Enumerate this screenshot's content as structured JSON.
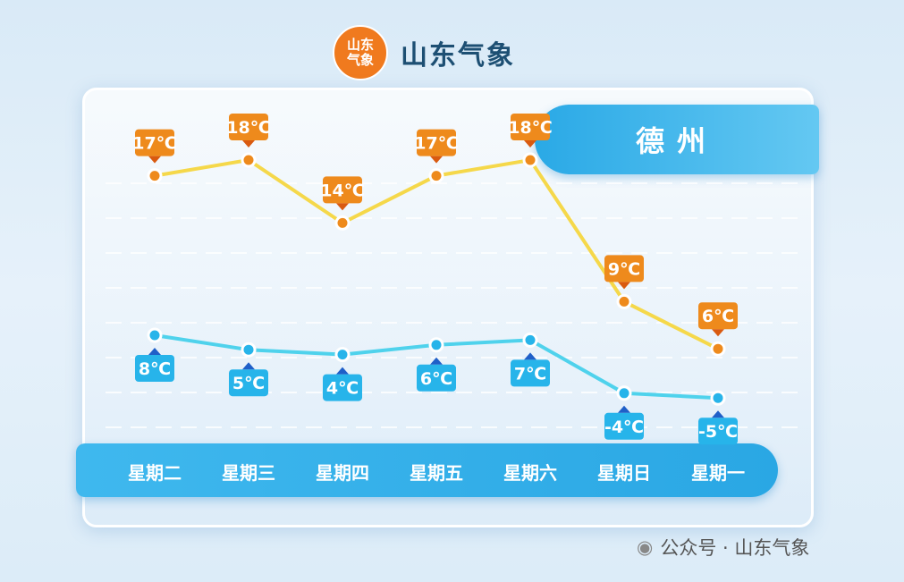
{
  "header": {
    "logo_text": "山东气象",
    "title": "山东气象"
  },
  "city": "德州",
  "footer": "公众号 · 山东气象",
  "colors": {
    "high": "#f5d84a",
    "high_label": "#ee8a1c",
    "low": "#4fd2ec",
    "low_label": "#27b4ea"
  },
  "chart_data": {
    "type": "line",
    "categories": [
      "星期二",
      "星期三",
      "星期四",
      "星期五",
      "星期六",
      "星期日",
      "星期一"
    ],
    "series": [
      {
        "values": [
          17,
          18,
          14,
          17,
          18,
          9,
          6
        ],
        "labels": [
          "17℃",
          "18℃",
          "14℃",
          "17℃",
          "18℃",
          "9℃",
          "6℃"
        ]
      },
      {
        "values": [
          8,
          5,
          4,
          6,
          7,
          -4,
          -5
        ],
        "labels": [
          "8℃",
          "5℃",
          "4℃",
          "6℃",
          "7℃",
          "-4℃",
          "-5℃"
        ]
      }
    ],
    "unit": "℃",
    "grid": true
  }
}
